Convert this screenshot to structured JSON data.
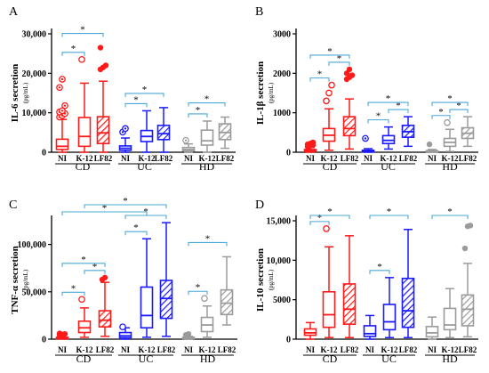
{
  "colors": {
    "red": "#ff1a1a",
    "blue": "#1a1aff",
    "gray": "#9b9b9b",
    "sig": "#4aa8d8",
    "axis": "#000000"
  },
  "chart_data": [
    {
      "panel": "A",
      "type": "box",
      "ylabel": "IL-6 secretion",
      "yunit": "(pg/mL)",
      "ylim": [
        0,
        30000
      ],
      "yticks": [
        0,
        10000,
        20000,
        30000
      ],
      "yticklabels": [
        "0",
        "10,000",
        "20,000",
        "30,000"
      ],
      "boxes": [
        {
          "label": "NI",
          "group": "CD",
          "color": "red",
          "hatch": false,
          "min": 0,
          "q1": 700,
          "median": 1500,
          "q3": 3300,
          "max": 8300,
          "outliers": [
            8900,
            9300,
            9800,
            10200,
            10500,
            11800,
            16400,
            18500
          ],
          "marker": "circle-dot"
        },
        {
          "label": "K-12",
          "group": "CD",
          "color": "red",
          "hatch": false,
          "min": 0,
          "q1": 1500,
          "median": 4000,
          "q3": 8800,
          "max": 17500,
          "outliers": [
            23500
          ],
          "marker": "circle-open"
        },
        {
          "label": "LF82",
          "group": "CD",
          "color": "red",
          "hatch": true,
          "min": 0,
          "q1": 2200,
          "median": 4900,
          "q3": 9000,
          "max": 18000,
          "outliers": [
            21000,
            21500,
            22000,
            26500
          ],
          "marker": "dot"
        },
        {
          "label": "NI",
          "group": "UC",
          "color": "blue",
          "hatch": false,
          "min": 0,
          "q1": 500,
          "median": 1000,
          "q3": 1600,
          "max": 3600,
          "outliers": [
            5100,
            6000
          ],
          "marker": "circle-dot"
        },
        {
          "label": "K-12",
          "group": "UC",
          "color": "blue",
          "hatch": false,
          "min": 0,
          "q1": 2700,
          "median": 4000,
          "q3": 5500,
          "max": 10500,
          "outliers": [],
          "marker": "none"
        },
        {
          "label": "LF82",
          "group": "UC",
          "color": "blue",
          "hatch": true,
          "min": 0,
          "q1": 3200,
          "median": 4700,
          "q3": 6800,
          "max": 11300,
          "outliers": [],
          "marker": "none"
        },
        {
          "label": "NI",
          "group": "HD",
          "color": "gray",
          "hatch": false,
          "min": 0,
          "q1": 300,
          "median": 700,
          "q3": 1200,
          "max": 2100,
          "outliers": [
            3000
          ],
          "marker": "circle-dot"
        },
        {
          "label": "K-12",
          "group": "HD",
          "color": "gray",
          "hatch": false,
          "min": 0,
          "q1": 1800,
          "median": 2900,
          "q3": 5600,
          "max": 7900,
          "outliers": [],
          "marker": "none"
        },
        {
          "label": "LF82",
          "group": "HD",
          "color": "gray",
          "hatch": true,
          "min": 1000,
          "q1": 3200,
          "median": 5000,
          "q3": 7200,
          "max": 8900,
          "outliers": [],
          "marker": "none"
        }
      ],
      "brackets": [
        {
          "from": 0,
          "to": 1,
          "level": 0,
          "label": "*"
        },
        {
          "from": 0,
          "to": 2,
          "level": 1,
          "label": "*"
        },
        {
          "from": 3,
          "to": 4,
          "level": 0,
          "label": "*"
        },
        {
          "from": 3,
          "to": 5,
          "level": 1,
          "label": "*"
        },
        {
          "from": 6,
          "to": 7,
          "level": 0,
          "label": "*"
        },
        {
          "from": 6,
          "to": 8,
          "level": 1,
          "label": "*"
        }
      ]
    },
    {
      "panel": "B",
      "type": "box",
      "ylabel": "IL-1β secretion",
      "yunit": "(pg/mL)",
      "ylim": [
        0,
        3000
      ],
      "yticks": [
        0,
        1000,
        2000,
        3000
      ],
      "yticklabels": [
        "0",
        "1000",
        "2000",
        "3000"
      ],
      "boxes": [
        {
          "label": "NI",
          "group": "CD",
          "color": "red",
          "hatch": false,
          "min": 0,
          "q1": 20,
          "median": 40,
          "q3": 70,
          "max": 120,
          "outliers": [
            140,
            160,
            180,
            200,
            220,
            250
          ],
          "marker": "dot"
        },
        {
          "label": "K-12",
          "group": "CD",
          "color": "red",
          "hatch": false,
          "min": 50,
          "q1": 280,
          "median": 430,
          "q3": 600,
          "max": 1100,
          "outliers": [
            1300,
            1500,
            1700
          ],
          "marker": "circle-open"
        },
        {
          "label": "LF82",
          "group": "CD",
          "color": "red",
          "hatch": true,
          "min": 80,
          "q1": 420,
          "median": 600,
          "q3": 900,
          "max": 1350,
          "outliers": [
            1850,
            1900,
            1950,
            2000,
            2100
          ],
          "marker": "dot"
        },
        {
          "label": "NI",
          "group": "UC",
          "color": "blue",
          "hatch": false,
          "min": 0,
          "q1": 10,
          "median": 25,
          "q3": 50,
          "max": 90,
          "outliers": [
            350
          ],
          "marker": "circle-dot"
        },
        {
          "label": "K-12",
          "group": "UC",
          "color": "blue",
          "hatch": false,
          "min": 80,
          "q1": 220,
          "median": 300,
          "q3": 420,
          "max": 640,
          "outliers": [],
          "marker": "none"
        },
        {
          "label": "LF82",
          "group": "UC",
          "color": "blue",
          "hatch": true,
          "min": 150,
          "q1": 380,
          "median": 520,
          "q3": 680,
          "max": 900,
          "outliers": [],
          "marker": "none"
        },
        {
          "label": "NI",
          "group": "HD",
          "color": "gray",
          "hatch": false,
          "min": 0,
          "q1": 10,
          "median": 20,
          "q3": 40,
          "max": 70,
          "outliers": [
            200
          ],
          "marker": "dot"
        },
        {
          "label": "K-12",
          "group": "HD",
          "color": "gray",
          "hatch": false,
          "min": 20,
          "q1": 150,
          "median": 250,
          "q3": 350,
          "max": 580,
          "outliers": [
            750
          ],
          "marker": "circle-open"
        },
        {
          "label": "LF82",
          "group": "HD",
          "color": "gray",
          "hatch": true,
          "min": 150,
          "q1": 350,
          "median": 480,
          "q3": 620,
          "max": 900,
          "outliers": [],
          "marker": "none"
        }
      ],
      "brackets": [
        {
          "from": 0,
          "to": 1,
          "level": 0,
          "label": "*"
        },
        {
          "from": 1,
          "to": 2,
          "level": 0,
          "label": "*"
        },
        {
          "from": 0,
          "to": 2,
          "level": 1,
          "label": "*"
        },
        {
          "from": 3,
          "to": 4,
          "level": 0,
          "label": "*"
        },
        {
          "from": 4,
          "to": 5,
          "level": 0,
          "label": "*"
        },
        {
          "from": 3,
          "to": 5,
          "level": 1,
          "label": "*"
        },
        {
          "from": 6,
          "to": 7,
          "level": 0,
          "label": "*"
        },
        {
          "from": 7,
          "to": 8,
          "level": 0,
          "label": "*"
        },
        {
          "from": 6,
          "to": 8,
          "level": 1,
          "label": "*"
        }
      ]
    },
    {
      "panel": "C",
      "type": "box",
      "ylabel": "TNF-α secretion",
      "yunit": "(pg/mL)",
      "ylim": [
        0,
        125000
      ],
      "yticks": [
        0,
        50000,
        100000
      ],
      "yticklabels": [
        "0",
        "50,000",
        "100,000"
      ],
      "boxes": [
        {
          "label": "NI",
          "group": "CD",
          "color": "red",
          "hatch": false,
          "min": 0,
          "q1": 500,
          "median": 1000,
          "q3": 2000,
          "max": 4000,
          "outliers": [
            4500,
            5000,
            5500,
            6000
          ],
          "marker": "dot"
        },
        {
          "label": "K-12",
          "group": "CD",
          "color": "red",
          "hatch": false,
          "min": 2000,
          "q1": 7000,
          "median": 12000,
          "q3": 19000,
          "max": 33000,
          "outliers": [
            42000
          ],
          "marker": "circle-open"
        },
        {
          "label": "LF82",
          "group": "CD",
          "color": "red",
          "hatch": true,
          "min": 3000,
          "q1": 13000,
          "median": 20000,
          "q3": 30000,
          "max": 60000,
          "outliers": [
            63000,
            65000
          ],
          "marker": "dot"
        },
        {
          "label": "NI",
          "group": "UC",
          "color": "blue",
          "hatch": false,
          "min": 0,
          "q1": 1500,
          "median": 3500,
          "q3": 7000,
          "max": 12000,
          "outliers": [
            13000
          ],
          "marker": "circle-open"
        },
        {
          "label": "K-12",
          "group": "UC",
          "color": "blue",
          "hatch": false,
          "min": 2000,
          "q1": 12000,
          "median": 25000,
          "q3": 55000,
          "max": 106000,
          "outliers": [],
          "marker": "none"
        },
        {
          "label": "LF82",
          "group": "UC",
          "color": "blue",
          "hatch": true,
          "min": 3000,
          "q1": 22000,
          "median": 43000,
          "q3": 62000,
          "max": 123000,
          "outliers": [],
          "marker": "none"
        },
        {
          "label": "NI",
          "group": "HD",
          "color": "gray",
          "hatch": false,
          "min": 0,
          "q1": 500,
          "median": 1000,
          "q3": 2000,
          "max": 3000,
          "outliers": [
            4500,
            5500
          ],
          "marker": "dot"
        },
        {
          "label": "K-12",
          "group": "HD",
          "color": "gray",
          "hatch": false,
          "min": 2000,
          "q1": 8000,
          "median": 15000,
          "q3": 23000,
          "max": 35000,
          "outliers": [
            43000
          ],
          "marker": "circle-open"
        },
        {
          "label": "LF82",
          "group": "HD",
          "color": "gray",
          "hatch": true,
          "min": 15000,
          "q1": 26000,
          "median": 38000,
          "q3": 52000,
          "max": 87000,
          "outliers": [],
          "marker": "none"
        }
      ],
      "brackets": [
        {
          "from": 0,
          "to": 1,
          "level": 0,
          "label": "*"
        },
        {
          "from": 1,
          "to": 2,
          "level": 0,
          "label": "*"
        },
        {
          "from": 0,
          "to": 2,
          "level": 1,
          "label": "*"
        },
        {
          "from": 3,
          "to": 4,
          "level": 0,
          "label": "*"
        },
        {
          "from": 3,
          "to": 5,
          "level": 1,
          "label": "*"
        },
        {
          "from": 0,
          "to": 4,
          "level": 2,
          "label": "*"
        },
        {
          "from": 1,
          "to": 5,
          "level": 3,
          "label": "*"
        },
        {
          "from": 6,
          "to": 7,
          "level": 0,
          "label": "*"
        },
        {
          "from": 6,
          "to": 8,
          "level": 1,
          "label": "*"
        }
      ]
    },
    {
      "panel": "D",
      "type": "box",
      "ylabel": "IL-10 secretion",
      "yunit": "(pg/mL)",
      "ylim": [
        0,
        15000
      ],
      "yticks": [
        0,
        5000,
        10000,
        15000
      ],
      "yticklabels": [
        "0",
        "5000",
        "10,000",
        "15,000"
      ],
      "boxes": [
        {
          "label": "NI",
          "group": "CD",
          "color": "red",
          "hatch": false,
          "min": 0,
          "q1": 500,
          "median": 800,
          "q3": 1300,
          "max": 2100,
          "outliers": [],
          "marker": "none"
        },
        {
          "label": "K-12",
          "group": "CD",
          "color": "red",
          "hatch": false,
          "min": 200,
          "q1": 1500,
          "median": 3100,
          "q3": 6000,
          "max": 11700,
          "outliers": [
            14000
          ],
          "marker": "circle-open"
        },
        {
          "label": "LF82",
          "group": "CD",
          "color": "red",
          "hatch": true,
          "min": 200,
          "q1": 1900,
          "median": 3800,
          "q3": 7000,
          "max": 13100,
          "outliers": [],
          "marker": "none"
        },
        {
          "label": "NI",
          "group": "UC",
          "color": "blue",
          "hatch": false,
          "min": 0,
          "q1": 350,
          "median": 700,
          "q3": 1700,
          "max": 3000,
          "outliers": [],
          "marker": "none"
        },
        {
          "label": "K-12",
          "group": "UC",
          "color": "blue",
          "hatch": false,
          "min": 200,
          "q1": 1200,
          "median": 2200,
          "q3": 4400,
          "max": 7800,
          "outliers": [],
          "marker": "none"
        },
        {
          "label": "LF82",
          "group": "UC",
          "color": "blue",
          "hatch": true,
          "min": 200,
          "q1": 1500,
          "median": 3600,
          "q3": 7700,
          "max": 13900,
          "outliers": [],
          "marker": "none"
        },
        {
          "label": "NI",
          "group": "HD",
          "color": "gray",
          "hatch": false,
          "min": 0,
          "q1": 300,
          "median": 800,
          "q3": 1600,
          "max": 2800,
          "outliers": [],
          "marker": "none"
        },
        {
          "label": "K-12",
          "group": "HD",
          "color": "gray",
          "hatch": false,
          "min": 200,
          "q1": 1200,
          "median": 1800,
          "q3": 3900,
          "max": 6400,
          "outliers": [],
          "marker": "none"
        },
        {
          "label": "LF82",
          "group": "HD",
          "color": "gray",
          "hatch": true,
          "min": 300,
          "q1": 1700,
          "median": 3800,
          "q3": 5600,
          "max": 9600,
          "outliers": [
            11500,
            14300,
            14400
          ],
          "marker": "dot"
        }
      ],
      "brackets": [
        {
          "from": 0,
          "to": 1,
          "level": 0,
          "label": "*"
        },
        {
          "from": 0,
          "to": 2,
          "level": 1,
          "label": "*"
        },
        {
          "from": 3,
          "to": 4,
          "level": 0,
          "label": "*"
        },
        {
          "from": 3,
          "to": 5,
          "level": 1,
          "label": "*"
        },
        {
          "from": 6,
          "to": 8,
          "level": 1,
          "label": "*"
        }
      ]
    }
  ]
}
